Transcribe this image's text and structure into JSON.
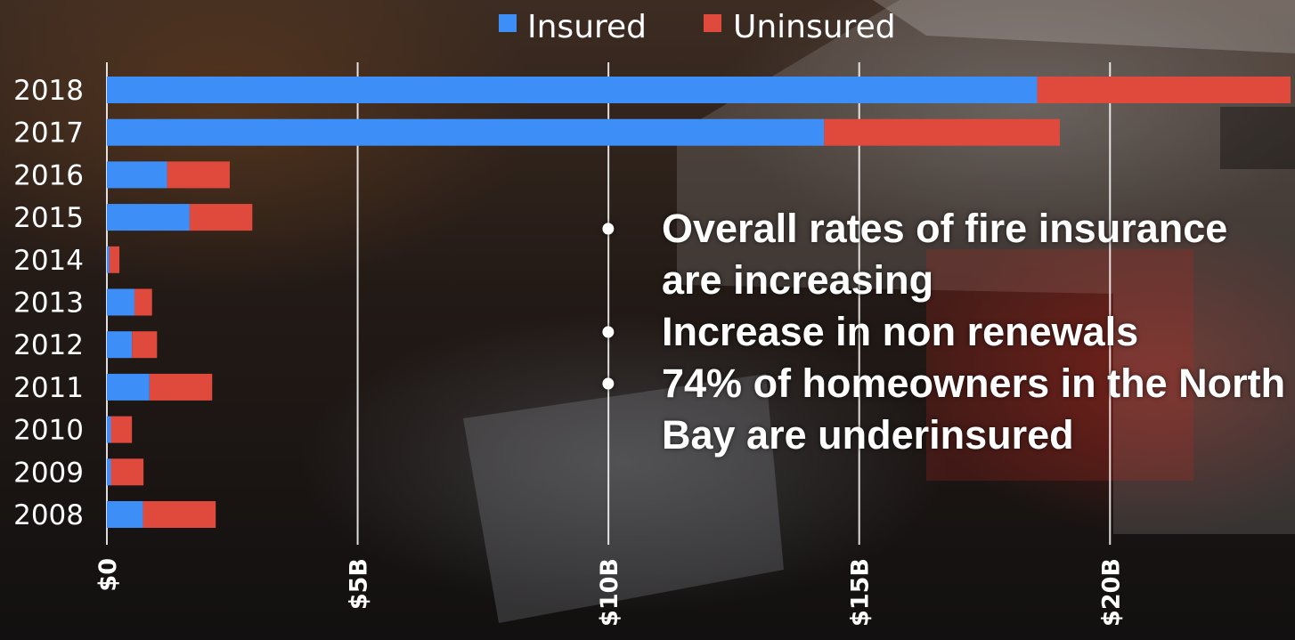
{
  "chart_data": {
    "type": "bar",
    "orientation": "horizontal",
    "stacked": true,
    "categories": [
      "2018",
      "2017",
      "2016",
      "2015",
      "2014",
      "2013",
      "2012",
      "2011",
      "2010",
      "2009",
      "2008"
    ],
    "series": [
      {
        "name": "Insured",
        "color": "#3e8ef7",
        "values": [
          18.55,
          14.3,
          1.2,
          1.65,
          0.05,
          0.55,
          0.5,
          0.85,
          0.08,
          0.08,
          0.72
        ]
      },
      {
        "name": "Uninsured",
        "color": "#e04a3c",
        "values": [
          5.05,
          4.7,
          1.25,
          1.25,
          0.2,
          0.35,
          0.5,
          1.25,
          0.42,
          0.65,
          1.45
        ]
      }
    ],
    "xticks": [
      0,
      5,
      10,
      15,
      20
    ],
    "xtick_labels": [
      "$0",
      "$5B",
      "$10B",
      "$15B",
      "$20B"
    ],
    "xlim": [
      0,
      23.6
    ],
    "grid": true,
    "legend_position": "top-center"
  },
  "notes": [
    "Overall rates of fire insurance are increasing",
    "Increase in non renewals",
    "74% of homeowners in the North Bay are underinsured"
  ],
  "bullet_char": "•"
}
